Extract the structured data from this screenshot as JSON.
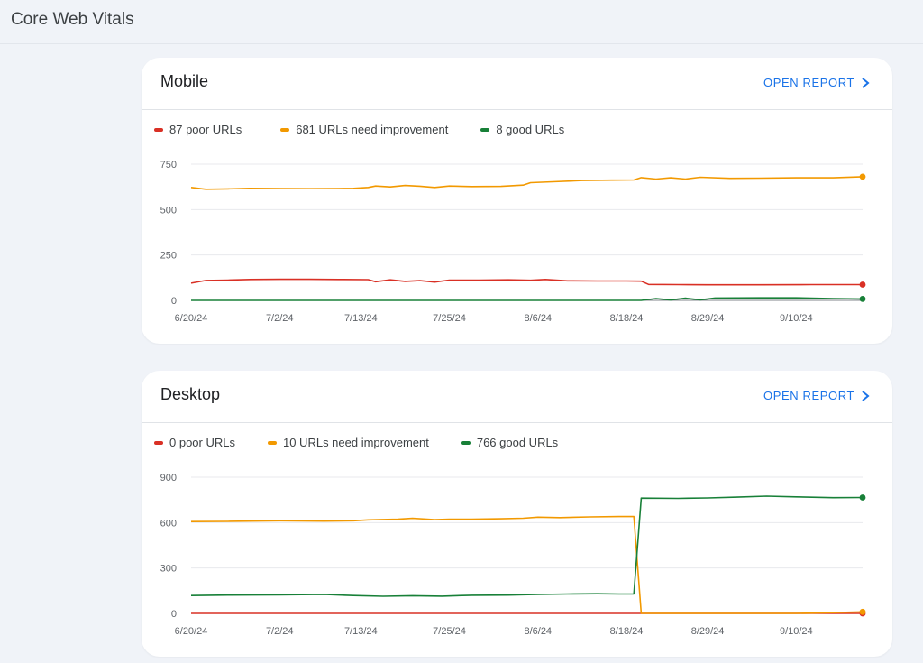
{
  "page": {
    "title": "Core Web Vitals"
  },
  "colors": {
    "poor": "#d93025",
    "needs_improvement": "#f29900",
    "good": "#188038",
    "link": "#1a73e8"
  },
  "cards": [
    {
      "title": "Mobile",
      "open_report_label": "OPEN REPORT",
      "legend": {
        "poor": "87 poor URLs",
        "needs_improvement": "681 URLs need improvement",
        "good": "8 good URLs"
      }
    },
    {
      "title": "Desktop",
      "open_report_label": "OPEN REPORT",
      "legend": {
        "poor": "0 poor URLs",
        "needs_improvement": "10 URLs need improvement",
        "good": "766 good URLs"
      }
    }
  ],
  "chart_data": [
    {
      "type": "line",
      "title": "Mobile",
      "x_tick_labels": [
        "6/20/24",
        "7/2/24",
        "7/13/24",
        "7/25/24",
        "8/6/24",
        "8/18/24",
        "8/29/24",
        "9/10/24"
      ],
      "y_ticks": [
        0,
        250,
        500,
        750
      ],
      "ylim": [
        0,
        750
      ],
      "grid": true,
      "legend_position": "top-left",
      "x_range": [
        "6/20/24",
        "9/19/24"
      ],
      "series": [
        {
          "name": "87 poor URLs",
          "color": "#d93025",
          "points": [
            [
              "6/20/24",
              95
            ],
            [
              "6/22/24",
              110
            ],
            [
              "6/25/24",
              112
            ],
            [
              "6/28/24",
              115
            ],
            [
              "7/2/24",
              116
            ],
            [
              "7/6/24",
              116
            ],
            [
              "7/10/24",
              115
            ],
            [
              "7/14/24",
              114
            ],
            [
              "7/15/24",
              103
            ],
            [
              "7/17/24",
              113
            ],
            [
              "7/19/24",
              105
            ],
            [
              "7/21/24",
              109
            ],
            [
              "7/23/24",
              101
            ],
            [
              "7/25/24",
              112
            ],
            [
              "7/29/24",
              112
            ],
            [
              "8/2/24",
              113
            ],
            [
              "8/5/24",
              111
            ],
            [
              "8/7/24",
              115
            ],
            [
              "8/10/24",
              108
            ],
            [
              "8/14/24",
              107
            ],
            [
              "8/18/24",
              107
            ],
            [
              "8/20/24",
              106
            ],
            [
              "8/21/24",
              88
            ],
            [
              "8/25/24",
              87
            ],
            [
              "8/29/24",
              86
            ],
            [
              "9/5/24",
              86
            ],
            [
              "9/12/24",
              87
            ],
            [
              "9/19/24",
              87
            ]
          ]
        },
        {
          "name": "681 URLs need improvement",
          "color": "#f29900",
          "points": [
            [
              "6/20/24",
              622
            ],
            [
              "6/22/24",
              612
            ],
            [
              "6/25/24",
              614
            ],
            [
              "6/28/24",
              617
            ],
            [
              "7/2/24",
              616
            ],
            [
              "7/6/24",
              615
            ],
            [
              "7/10/24",
              616
            ],
            [
              "7/12/24",
              617
            ],
            [
              "7/14/24",
              622
            ],
            [
              "7/15/24",
              630
            ],
            [
              "7/17/24",
              625
            ],
            [
              "7/19/24",
              633
            ],
            [
              "7/21/24",
              629
            ],
            [
              "7/23/24",
              622
            ],
            [
              "7/25/24",
              630
            ],
            [
              "7/28/24",
              627
            ],
            [
              "8/1/24",
              628
            ],
            [
              "8/4/24",
              635
            ],
            [
              "8/5/24",
              648
            ],
            [
              "8/8/24",
              653
            ],
            [
              "8/12/24",
              660
            ],
            [
              "8/16/24",
              662
            ],
            [
              "8/19/24",
              663
            ],
            [
              "8/20/24",
              676
            ],
            [
              "8/22/24",
              668
            ],
            [
              "8/24/24",
              675
            ],
            [
              "8/26/24",
              668
            ],
            [
              "8/28/24",
              678
            ],
            [
              "9/1/24",
              672
            ],
            [
              "9/5/24",
              673
            ],
            [
              "9/10/24",
              675
            ],
            [
              "9/15/24",
              675
            ],
            [
              "9/19/24",
              681
            ]
          ]
        },
        {
          "name": "8 good URLs",
          "color": "#188038",
          "points": [
            [
              "6/20/24",
              0
            ],
            [
              "8/20/24",
              0
            ],
            [
              "8/22/24",
              10
            ],
            [
              "8/24/24",
              2
            ],
            [
              "8/26/24",
              12
            ],
            [
              "8/28/24",
              3
            ],
            [
              "8/30/24",
              13
            ],
            [
              "9/5/24",
              14
            ],
            [
              "9/10/24",
              14
            ],
            [
              "9/15/24",
              10
            ],
            [
              "9/19/24",
              8
            ]
          ]
        }
      ]
    },
    {
      "type": "line",
      "title": "Desktop",
      "x_tick_labels": [
        "6/20/24",
        "7/2/24",
        "7/13/24",
        "7/25/24",
        "8/6/24",
        "8/18/24",
        "8/29/24",
        "9/10/24"
      ],
      "y_ticks": [
        0,
        300,
        600,
        900
      ],
      "ylim": [
        0,
        900
      ],
      "grid": true,
      "legend_position": "top-left",
      "x_range": [
        "6/20/24",
        "9/19/24"
      ],
      "series": [
        {
          "name": "0 poor URLs",
          "color": "#d93025",
          "points": [
            [
              "6/20/24",
              0
            ],
            [
              "9/19/24",
              0
            ]
          ]
        },
        {
          "name": "10 URLs need improvement",
          "color": "#f29900",
          "points": [
            [
              "6/20/24",
              607
            ],
            [
              "6/25/24",
              608
            ],
            [
              "7/2/24",
              612
            ],
            [
              "7/8/24",
              610
            ],
            [
              "7/12/24",
              612
            ],
            [
              "7/14/24",
              618
            ],
            [
              "7/18/24",
              622
            ],
            [
              "7/20/24",
              628
            ],
            [
              "7/23/24",
              620
            ],
            [
              "7/25/24",
              623
            ],
            [
              "7/28/24",
              622
            ],
            [
              "8/1/24",
              625
            ],
            [
              "8/4/24",
              629
            ],
            [
              "8/6/24",
              636
            ],
            [
              "8/9/24",
              633
            ],
            [
              "8/13/24",
              638
            ],
            [
              "8/17/24",
              640
            ],
            [
              "8/19/24",
              640
            ],
            [
              "8/20/24",
              0
            ],
            [
              "9/10/24",
              0
            ],
            [
              "9/15/24",
              5
            ],
            [
              "9/19/24",
              10
            ]
          ]
        },
        {
          "name": "766 good URLs",
          "color": "#188038",
          "points": [
            [
              "6/20/24",
              118
            ],
            [
              "6/25/24",
              121
            ],
            [
              "7/2/24",
              122
            ],
            [
              "7/8/24",
              125
            ],
            [
              "7/12/24",
              118
            ],
            [
              "7/16/24",
              113
            ],
            [
              "7/20/24",
              117
            ],
            [
              "7/24/24",
              114
            ],
            [
              "7/28/24",
              120
            ],
            [
              "8/2/24",
              121
            ],
            [
              "8/6/24",
              125
            ],
            [
              "8/10/24",
              128
            ],
            [
              "8/14/24",
              130
            ],
            [
              "8/17/24",
              128
            ],
            [
              "8/19/24",
              128
            ],
            [
              "8/20/24",
              762
            ],
            [
              "8/25/24",
              760
            ],
            [
              "8/29/24",
              763
            ],
            [
              "9/2/24",
              768
            ],
            [
              "9/6/24",
              775
            ],
            [
              "9/10/24",
              770
            ],
            [
              "9/15/24",
              765
            ],
            [
              "9/19/24",
              766
            ]
          ]
        }
      ]
    }
  ]
}
